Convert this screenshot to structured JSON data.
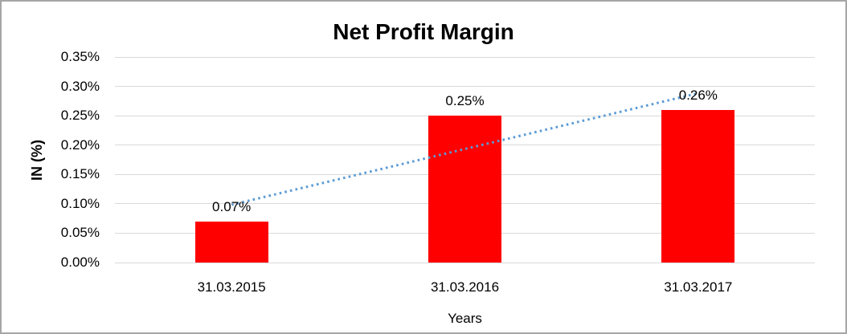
{
  "window": {
    "background": "#ffffff",
    "frame_color": "#a6a6a6"
  },
  "chart_data": {
    "type": "bar",
    "title": "Net Profit Margin",
    "xlabel": "Years",
    "ylabel": "IN (%)",
    "categories": [
      "31.03.2015",
      "31.03.2016",
      "31.03.2017"
    ],
    "values": [
      0.07,
      0.25,
      0.26
    ],
    "data_labels": [
      "0.07%",
      "0.25%",
      "0.26%"
    ],
    "unit": "%",
    "ylim": [
      0,
      0.35
    ],
    "ytick_step": 0.05,
    "ytick_labels": [
      "0.00%",
      "0.05%",
      "0.10%",
      "0.15%",
      "0.20%",
      "0.25%",
      "0.30%",
      "0.35%"
    ],
    "grid": true,
    "legend": "none",
    "bar_color": "#ff0000",
    "gridline_color": "#d9d9d9",
    "trendline": {
      "type": "linear",
      "style": "dotted",
      "color": "#5b9bd5"
    }
  }
}
